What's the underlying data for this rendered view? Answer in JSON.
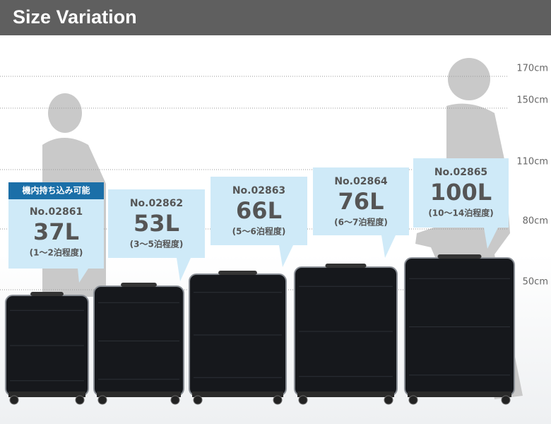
{
  "header": {
    "title": "Size Variation"
  },
  "height_scale": [
    "170cm",
    "150cm",
    "110cm",
    "80cm",
    "50cm"
  ],
  "products": [
    {
      "badge": "機内持ち込み可能",
      "number": "No.02861",
      "capacity": "37L",
      "nights": "(1～2泊程度)"
    },
    {
      "number": "No.02862",
      "capacity": "53L",
      "nights": "(3～5泊程度)"
    },
    {
      "number": "No.02863",
      "capacity": "66L",
      "nights": "(5～6泊程度)"
    },
    {
      "number": "No.02864",
      "capacity": "76L",
      "nights": "(6～7泊程度)"
    },
    {
      "number": "No.02865",
      "capacity": "100L",
      "nights": "(10～14泊程度)"
    }
  ]
}
